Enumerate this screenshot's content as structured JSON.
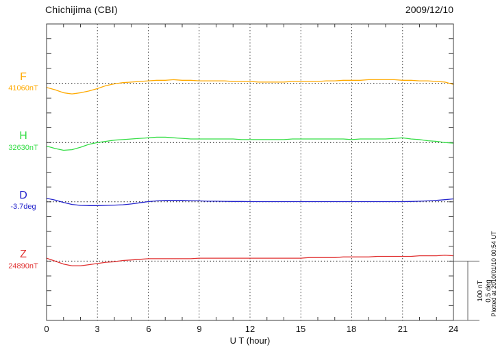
{
  "header": {
    "title": "Chichijima (CBI)",
    "date": "2009/12/10"
  },
  "x_axis": {
    "label": "U T (hour)",
    "ticks": [
      "0",
      "3",
      "6",
      "9",
      "12",
      "15",
      "18",
      "21",
      "24"
    ]
  },
  "scale_bar": {
    "line1": "100 nT",
    "line2": "0.5 deg"
  },
  "footer_note": "Plotted at 2010/01/10 00:54 UT",
  "colors": {
    "axis": "#3c3c3c",
    "grid": "#444444",
    "baseline": "#111111",
    "scale_bar": "#666666"
  },
  "channels": [
    {
      "letter": "F",
      "value_label": "41060nT"
    },
    {
      "letter": "H",
      "value_label": "32630nT"
    },
    {
      "letter": "D",
      "value_label": "-3.7deg"
    },
    {
      "letter": "Z",
      "value_label": "24890nT"
    }
  ],
  "chart_data": {
    "type": "line",
    "title": "Chichijima (CBI)",
    "date": "2009/12/10",
    "xlabel": "U T (hour)",
    "xlim": [
      0,
      24
    ],
    "x_ticks_major": [
      0,
      3,
      6,
      9,
      12,
      15,
      18,
      21,
      24
    ],
    "x_minor_step_hours": 1,
    "grid": "vertical dotted lines at 3-hour marks; dotted horizontal baseline per channel",
    "scale": {
      "per_division_nT": 100,
      "per_division_deg": 0.5
    },
    "x": [
      0,
      0.5,
      1,
      1.5,
      2,
      2.5,
      3,
      3.5,
      4,
      4.5,
      5,
      5.5,
      6,
      6.5,
      7,
      7.5,
      8,
      8.5,
      9,
      9.5,
      10,
      10.5,
      11,
      11.5,
      12,
      12.5,
      13,
      13.5,
      14,
      14.5,
      15,
      15.5,
      16,
      16.5,
      17,
      17.5,
      18,
      18.5,
      19,
      19.5,
      20,
      20.5,
      21,
      21.5,
      22,
      22.5,
      23,
      23.5,
      24
    ],
    "series": [
      {
        "name": "F",
        "unit": "nT",
        "baseline": 41060,
        "baseline_label": "41060nT",
        "color": "#FFAA00",
        "offsets": [
          -7,
          -11,
          -16,
          -18,
          -16,
          -13,
          -9,
          -4,
          -1,
          1,
          2,
          3,
          4,
          5,
          5,
          6,
          5,
          5,
          4,
          4,
          4,
          4,
          3,
          3,
          3,
          2,
          2,
          2,
          2,
          3,
          3,
          3,
          3,
          4,
          4,
          5,
          5,
          5,
          6,
          6,
          6,
          6,
          5,
          5,
          4,
          4,
          3,
          2,
          -2
        ]
      },
      {
        "name": "H",
        "unit": "nT",
        "baseline": 32630,
        "baseline_label": "32630nT",
        "color": "#33DD44",
        "offsets": [
          -6,
          -10,
          -13,
          -12,
          -8,
          -3,
          0,
          2,
          4,
          5,
          6,
          7,
          8,
          9,
          9,
          8,
          7,
          6,
          6,
          6,
          6,
          6,
          6,
          5,
          5,
          5,
          5,
          5,
          5,
          6,
          6,
          6,
          6,
          6,
          6,
          6,
          5,
          6,
          6,
          6,
          6,
          7,
          8,
          6,
          5,
          3,
          2,
          0,
          -1
        ]
      },
      {
        "name": "D",
        "unit": "deg",
        "baseline": -3.7,
        "baseline_label": "-3.7deg",
        "color": "#2222CC",
        "offsets": [
          0.03,
          0.015,
          -0.005,
          -0.022,
          -0.03,
          -0.032,
          -0.032,
          -0.03,
          -0.028,
          -0.025,
          -0.018,
          -0.008,
          0.002,
          0.008,
          0.012,
          0.012,
          0.012,
          0.01,
          0.008,
          0.005,
          0.005,
          0.004,
          0.003,
          0.003,
          0.002,
          0.002,
          0.002,
          0.002,
          0.002,
          0.002,
          0.002,
          0.002,
          0.002,
          0.002,
          0.002,
          0.002,
          0.002,
          0.002,
          0.002,
          0.002,
          0.002,
          0.002,
          0.002,
          0.003,
          0.005,
          0.008,
          0.012,
          0.018,
          0.025
        ]
      },
      {
        "name": "Z",
        "unit": "nT",
        "baseline": 24890,
        "baseline_label": "24890nT",
        "color": "#E03030",
        "offsets": [
          5,
          0,
          -5,
          -8,
          -8,
          -6,
          -4,
          -2,
          -1,
          1,
          2,
          3,
          4,
          4,
          4,
          4,
          4,
          4,
          5,
          5,
          5,
          5,
          5,
          5,
          5,
          5,
          5,
          5,
          5,
          5,
          5,
          6,
          6,
          6,
          6,
          7,
          7,
          7,
          7,
          8,
          8,
          8,
          8,
          8,
          9,
          9,
          9,
          10,
          9
        ]
      }
    ]
  }
}
